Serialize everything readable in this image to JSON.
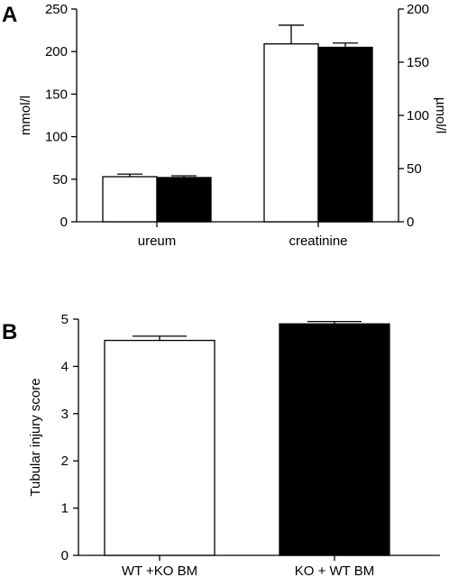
{
  "chart_data": [
    {
      "panel": "A",
      "type": "bar",
      "categories": [
        "ureum",
        "creatinine"
      ],
      "series": [
        {
          "color": "#ffffff",
          "values": [
            53,
            209
          ],
          "errors": [
            3,
            22
          ]
        },
        {
          "color": "#000000",
          "values": [
            52,
            205
          ],
          "errors": [
            2,
            5
          ]
        }
      ],
      "left_axis": {
        "label": "mmol/l",
        "ylim": [
          0,
          250
        ],
        "ticks": [
          0,
          50,
          100,
          150,
          200,
          250
        ]
      },
      "right_axis": {
        "label": "µmol/l",
        "ylim": [
          0,
          200
        ],
        "ticks": [
          0,
          50,
          100,
          150,
          200
        ]
      },
      "grid": false
    },
    {
      "panel": "B",
      "type": "bar",
      "categories": [
        "WT +KO BM",
        "KO + WT BM"
      ],
      "series": [
        {
          "values": [
            4.55,
            4.9
          ],
          "errors": [
            0.09,
            0.05
          ],
          "colors": [
            "#ffffff",
            "#000000"
          ]
        }
      ],
      "ylabel": "Tubular injury score",
      "ylim": [
        0,
        5
      ],
      "ticks": [
        0,
        1,
        2,
        3,
        4,
        5
      ],
      "grid": false
    }
  ]
}
